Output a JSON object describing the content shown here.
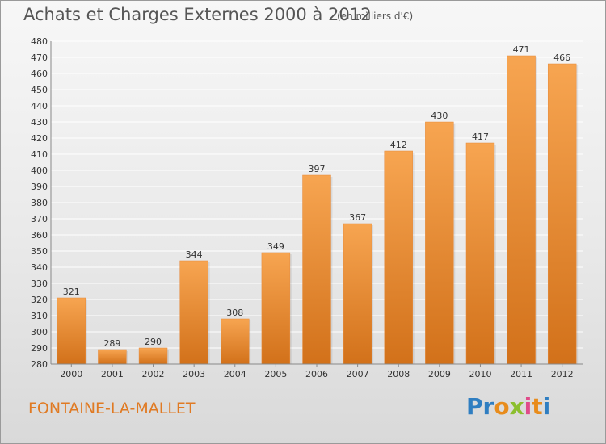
{
  "header": {
    "title": "Achats et Charges Externes 2000 à 2012",
    "unit": "(en milliers d'€)"
  },
  "footer": {
    "location": "FONTAINE-LA-MALLET",
    "brand": "Proxiti"
  },
  "colors": {
    "bar_top": "#f7a551",
    "bar_bottom": "#d2711a",
    "location_text": "#e07a23",
    "axis_text": "#333333",
    "grid": "#ffffff"
  },
  "chart_data": {
    "type": "bar",
    "title": "Achats et Charges Externes 2000 à 2012",
    "subtitle": "(en milliers d'€)",
    "xlabel": "",
    "ylabel": "",
    "categories": [
      "2000",
      "2001",
      "2002",
      "2003",
      "2004",
      "2005",
      "2006",
      "2007",
      "2008",
      "2009",
      "2010",
      "2011",
      "2012"
    ],
    "values": [
      321,
      289,
      290,
      344,
      308,
      349,
      397,
      367,
      412,
      430,
      417,
      471,
      466
    ],
    "ylim": [
      280,
      480
    ],
    "ytick_step": 10,
    "grid": true,
    "data_labels": true
  }
}
